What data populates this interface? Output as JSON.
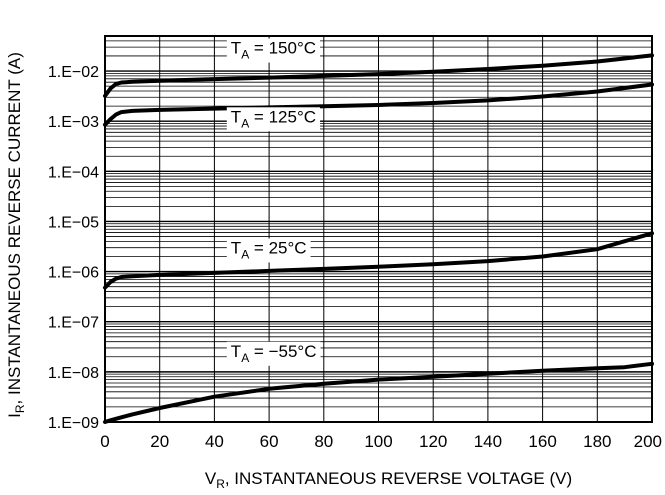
{
  "chart_data": {
    "type": "line",
    "xlabel": "V",
    "xlabel_sub": "R",
    "xlabel_rest": ", INSTANTANEOUS REVERSE VOLTAGE (V)",
    "ylabel": "I",
    "ylabel_sub": "R",
    "ylabel_rest": ", INSTANTANEOUS REVERSE CURRENT (A)",
    "x_ticks": [
      0,
      20,
      40,
      60,
      80,
      100,
      120,
      140,
      160,
      180,
      200
    ],
    "x_tick_labels": [
      "0",
      "20",
      "40",
      "60",
      "80",
      "100",
      "120",
      "140",
      "160",
      "180",
      "200"
    ],
    "xlim": [
      0,
      200
    ],
    "y_scale": "log",
    "ylim": [
      1e-09,
      0.05
    ],
    "y_ticks": [
      1e-09,
      1e-08,
      1e-07,
      1e-06,
      1e-05,
      0.0001,
      0.001,
      0.01
    ],
    "y_tick_labels": [
      "1.E−09",
      "1.E−08",
      "1.E−07",
      "1.E−06",
      "1.E−05",
      "1.E−04",
      "1.E−03",
      "1.E−02"
    ],
    "grid": true,
    "series": [
      {
        "name": "T_A = 150°C",
        "label_main": "T",
        "label_sub": "A",
        "label_rest": " = 150°C",
        "label_at": [
          46,
          0.0223
        ],
        "x": [
          0,
          2,
          4,
          6,
          10,
          20,
          40,
          60,
          80,
          100,
          120,
          140,
          160,
          180,
          200
        ],
        "y": [
          0.0032,
          0.0045,
          0.0055,
          0.0059,
          0.0061,
          0.0064,
          0.0069,
          0.0074,
          0.008,
          0.0087,
          0.0097,
          0.011,
          0.0128,
          0.0155,
          0.0205
        ]
      },
      {
        "name": "T_A = 125°C",
        "label_main": "T",
        "label_sub": "A",
        "label_rest": " = 125°C",
        "label_at": [
          46,
          0.00095
        ],
        "x": [
          0,
          2,
          4,
          6,
          10,
          20,
          40,
          60,
          80,
          100,
          120,
          140,
          160,
          180,
          200
        ],
        "y": [
          0.00085,
          0.0011,
          0.00135,
          0.00152,
          0.0016,
          0.00168,
          0.00178,
          0.00188,
          0.00198,
          0.0021,
          0.0023,
          0.0026,
          0.0031,
          0.0039,
          0.0054
        ]
      },
      {
        "name": "T_A = 25°C",
        "label_main": "T",
        "label_sub": "A",
        "label_rest": " = 25°C",
        "label_at": [
          46,
          2.3e-06
        ],
        "x": [
          0,
          2,
          4,
          6,
          10,
          20,
          40,
          60,
          80,
          100,
          120,
          140,
          160,
          180,
          200
        ],
        "y": [
          4.8e-07,
          6.2e-07,
          7.2e-07,
          7.8e-07,
          8.1e-07,
          8.6e-07,
          9.4e-07,
          1.03e-06,
          1.13e-06,
          1.25e-06,
          1.4e-06,
          1.62e-06,
          2e-06,
          2.8e-06,
          5.8e-06
        ]
      },
      {
        "name": "T_A = −55°C",
        "label_main": "T",
        "label_sub": "A",
        "label_rest": " = −55°C",
        "label_at": [
          46,
          2e-08
        ],
        "x": [
          0,
          2,
          4,
          6,
          10,
          20,
          40,
          60,
          80,
          100,
          120,
          140,
          160,
          180,
          190,
          200
        ],
        "y": [
          1e-09,
          1.08e-09,
          1.16e-09,
          1.24e-09,
          1.42e-09,
          1.9e-09,
          3.2e-09,
          4.6e-09,
          5.8e-09,
          7e-09,
          8e-09,
          9.2e-09,
          1.05e-08,
          1.18e-08,
          1.24e-08,
          1.45e-08
        ]
      }
    ]
  }
}
